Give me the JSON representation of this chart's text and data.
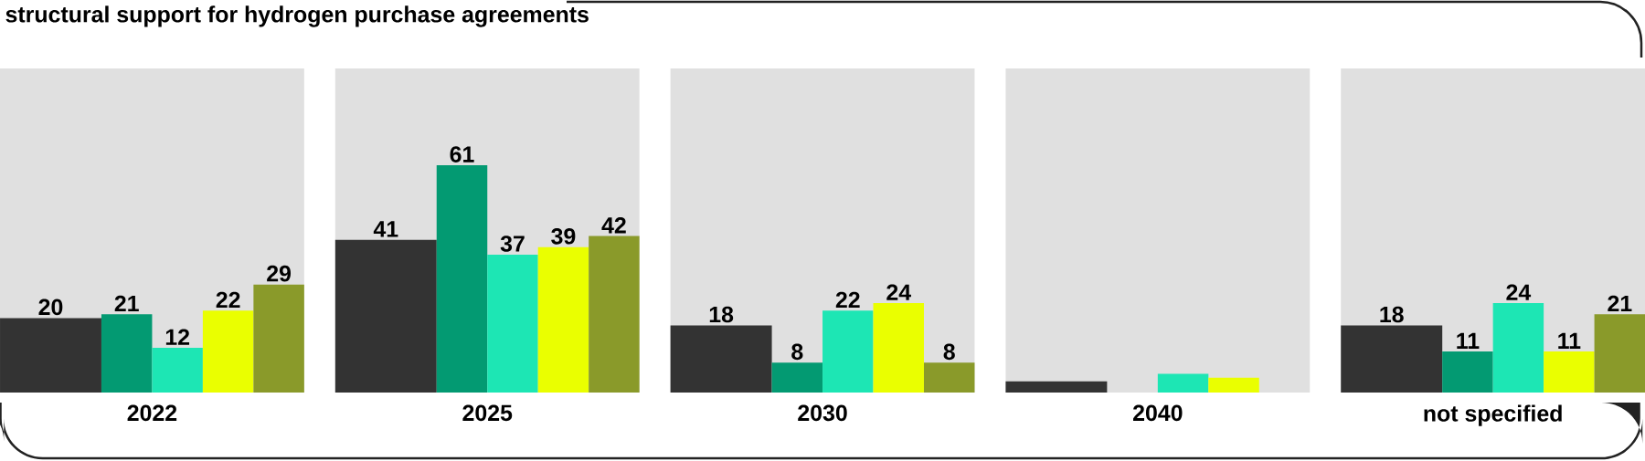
{
  "chart_data": {
    "type": "bar",
    "title": "structural support for hydrogen purchase agreements",
    "categories": [
      "2022",
      "2025",
      "2030",
      "2040",
      "not specified"
    ],
    "ylim": [
      0,
      87
    ],
    "bands": [
      {
        "axis": "y",
        "from": 0,
        "to": 87,
        "color": "#e0e0e0"
      },
      {
        "axis": "y",
        "from": 0,
        "to": 87,
        "color": "#e0e0e0"
      },
      {
        "axis": "y",
        "from": 0,
        "to": 87,
        "color": "#e0e0e0"
      },
      {
        "axis": "y",
        "from": 0,
        "to": 87,
        "color": "#e0e0e0"
      },
      {
        "axis": "y",
        "from": 0,
        "to": 87,
        "color": "#e0e0e0"
      }
    ],
    "series": [
      {
        "color": "#333333",
        "values": [
          20,
          41,
          18,
          3,
          18
        ],
        "value_labels": [
          "20",
          "41",
          "18",
          null,
          "18"
        ]
      },
      {
        "color": "#039a72",
        "values": [
          21,
          61,
          8,
          null,
          11
        ],
        "value_labels": [
          "21",
          "61",
          "8",
          null,
          "11"
        ]
      },
      {
        "color": "#1de6b4",
        "values": [
          12,
          37,
          22,
          5,
          24
        ],
        "value_labels": [
          "12",
          "37",
          "22",
          null,
          "24"
        ]
      },
      {
        "color": "#eaff00",
        "values": [
          22,
          39,
          24,
          4,
          11
        ],
        "value_labels": [
          "22",
          "39",
          "24",
          null,
          "11"
        ]
      },
      {
        "color": "#8a9a2a",
        "values": [
          29,
          42,
          8,
          null,
          21
        ],
        "value_labels": [
          "29",
          "42",
          "8",
          null,
          "21"
        ]
      }
    ]
  }
}
